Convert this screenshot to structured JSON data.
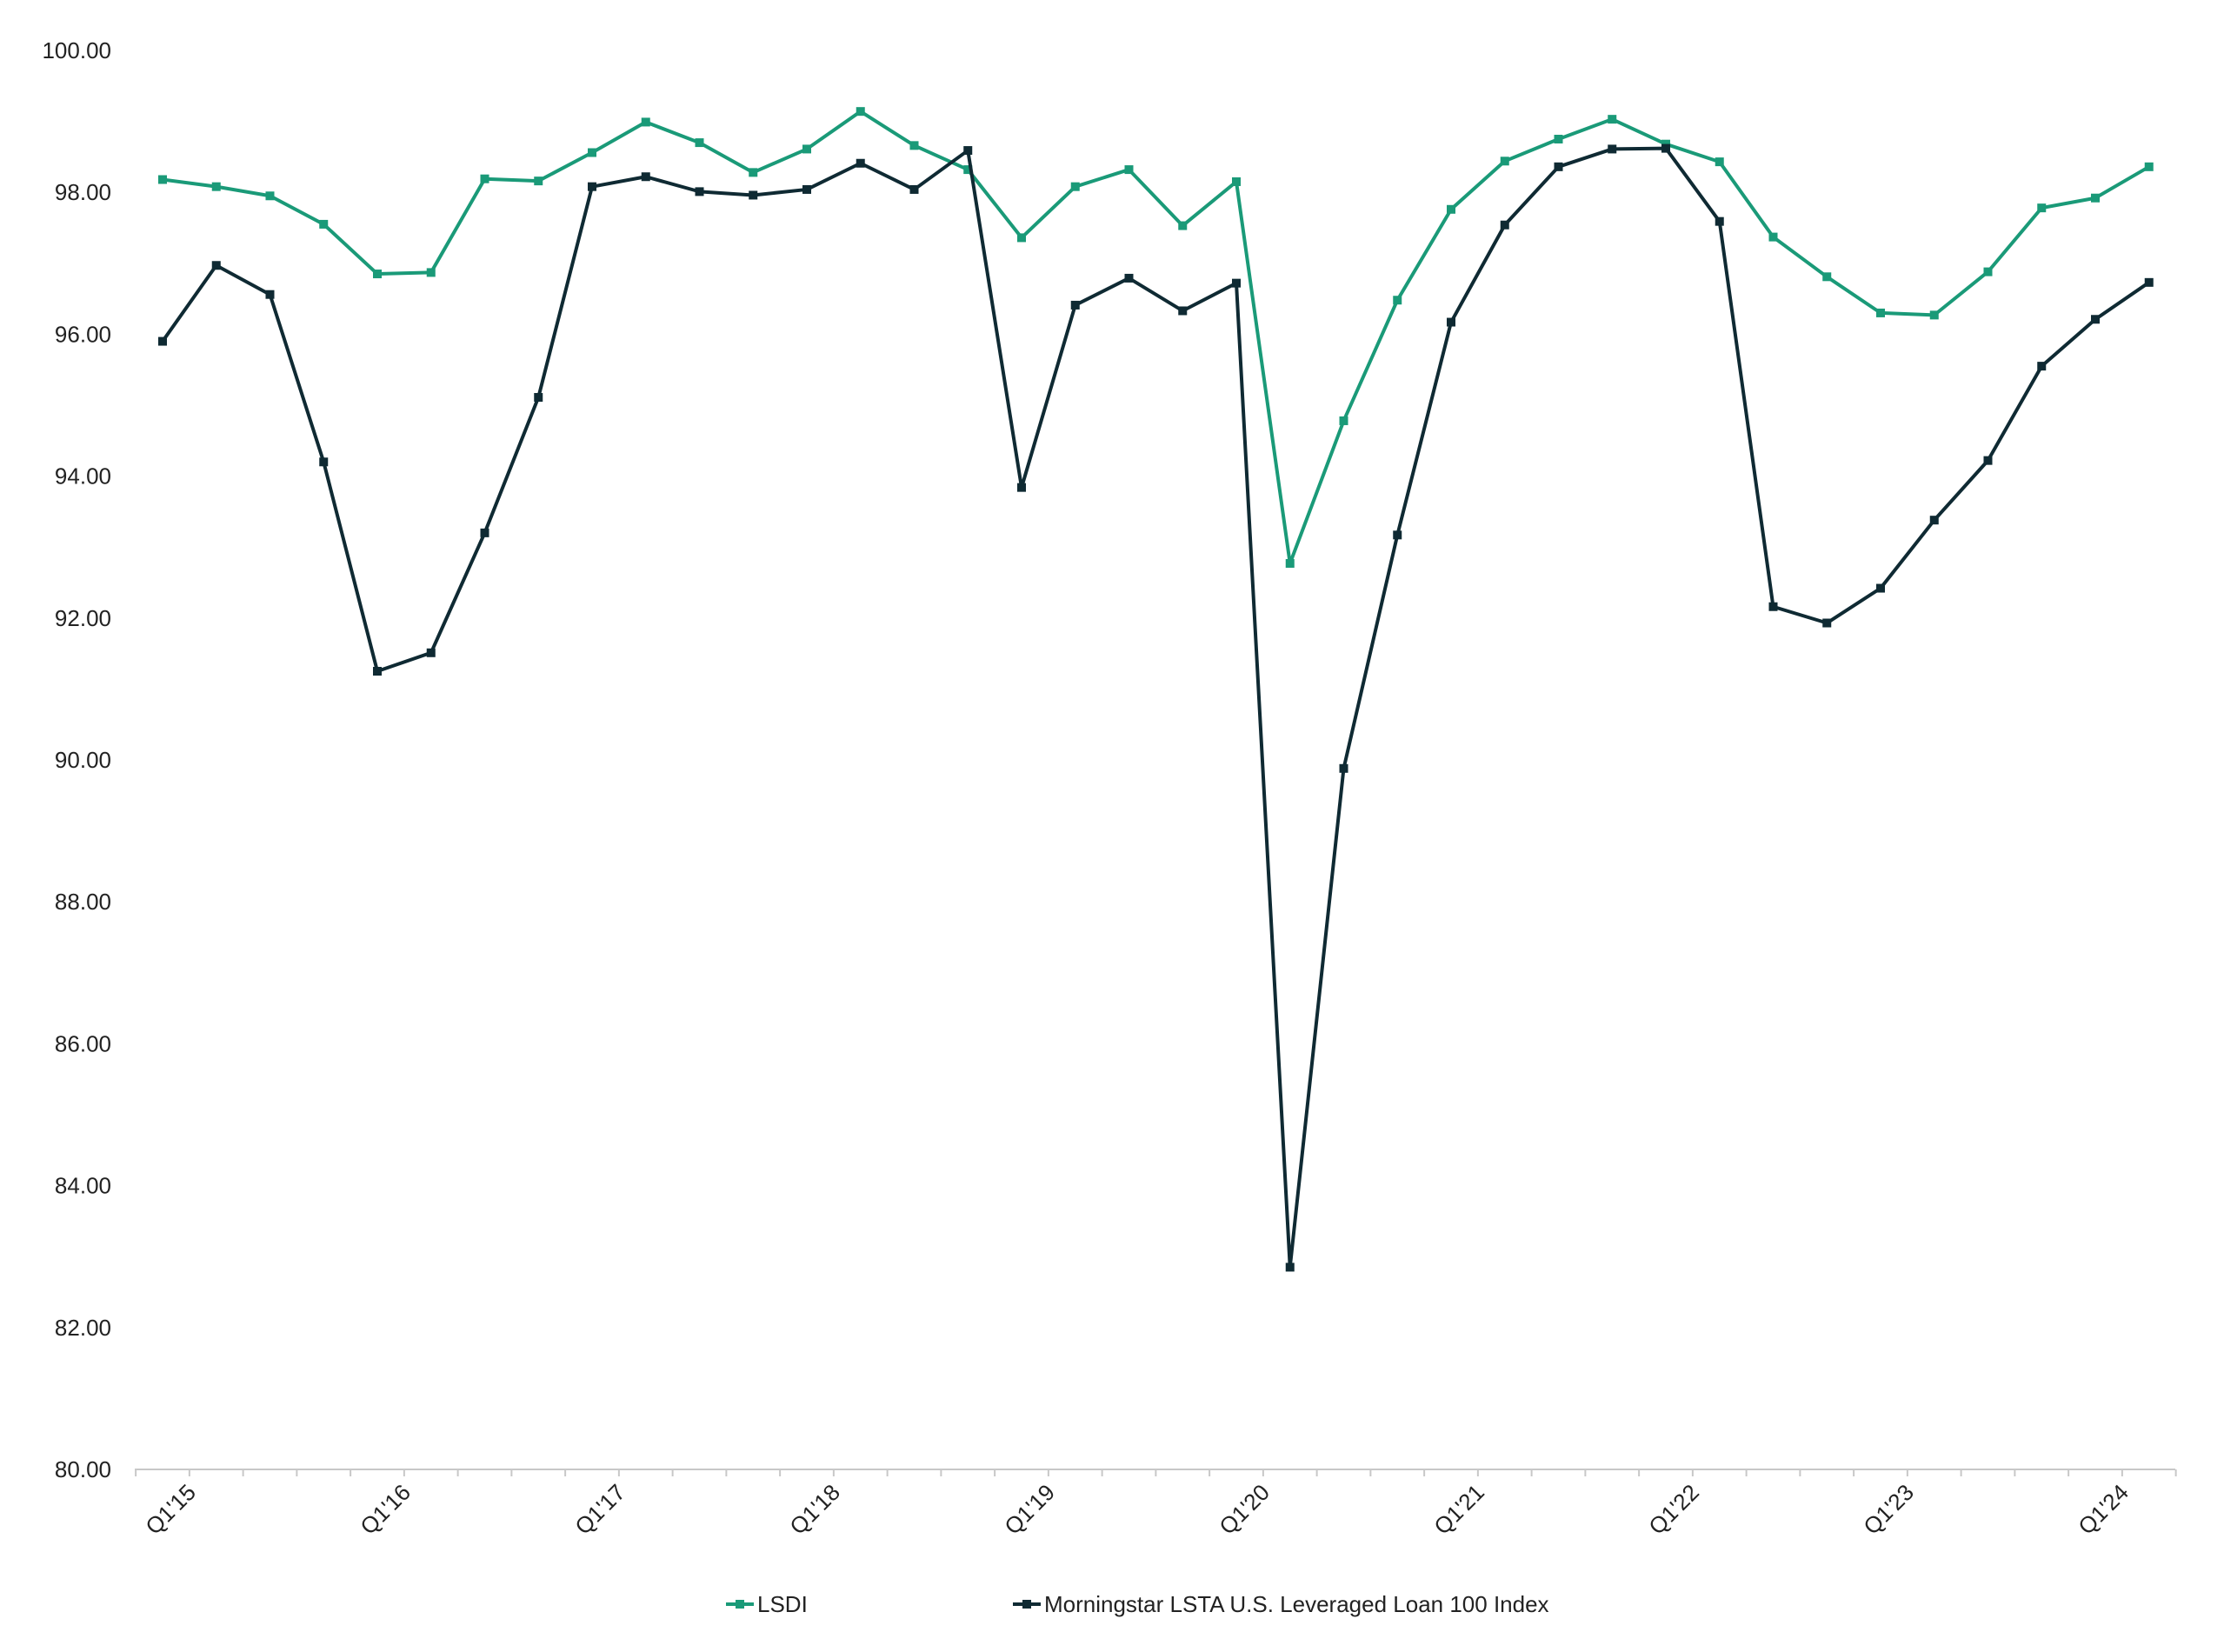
{
  "chart_data": {
    "type": "line",
    "title": "",
    "xlabel": "",
    "ylabel": "",
    "ylim": [
      80,
      100
    ],
    "yticks": [
      80,
      82,
      84,
      86,
      88,
      90,
      92,
      94,
      96,
      98,
      100
    ],
    "ytick_labels": [
      "80.00",
      "82.00",
      "84.00",
      "86.00",
      "88.00",
      "90.00",
      "92.00",
      "94.00",
      "96.00",
      "98.00",
      "100.00"
    ],
    "xtick_labels": [
      {
        "label": "Q1'15",
        "index": 1
      },
      {
        "label": "Q1'16",
        "index": 5
      },
      {
        "label": "Q1'17",
        "index": 9
      },
      {
        "label": "Q1'18",
        "index": 13
      },
      {
        "label": "Q1'19",
        "index": 17
      },
      {
        "label": "Q1'20",
        "index": 21
      },
      {
        "label": "Q1'21",
        "index": 25
      },
      {
        "label": "Q1'22",
        "index": 29
      },
      {
        "label": "Q1'23",
        "index": 33
      },
      {
        "label": "Q1'24",
        "index": 37
      }
    ],
    "grid": false,
    "legend_position": "bottom",
    "series": [
      {
        "name": "LSDI",
        "color": "#1a9a78",
        "marker": "square",
        "values": [
          98.18,
          98.08,
          97.95,
          97.55,
          96.85,
          96.87,
          98.19,
          98.16,
          98.56,
          98.99,
          98.7,
          98.28,
          98.61,
          99.14,
          98.66,
          98.32,
          97.36,
          98.08,
          98.32,
          97.53,
          98.15,
          92.77,
          94.78,
          96.48,
          97.76,
          98.44,
          98.75,
          99.03,
          98.68,
          98.43,
          97.37,
          96.81,
          96.3,
          96.27,
          96.88,
          97.78,
          97.92,
          98.36
        ]
      },
      {
        "name": "Morningstar LSTA U.S. Leveraged Loan 100 Index",
        "color": "#0f2a33",
        "marker": "square",
        "values": [
          95.9,
          96.97,
          96.56,
          94.2,
          91.25,
          91.51,
          93.2,
          95.11,
          98.08,
          98.22,
          98.01,
          97.96,
          98.04,
          98.41,
          98.04,
          98.59,
          93.84,
          96.41,
          96.79,
          96.33,
          96.72,
          82.85,
          89.88,
          93.17,
          96.17,
          97.54,
          98.36,
          98.61,
          98.62,
          97.59,
          92.16,
          91.93,
          92.42,
          93.38,
          94.22,
          95.55,
          96.21,
          96.73
        ]
      }
    ]
  },
  "legend": {
    "items": [
      {
        "label": "LSDI",
        "color": "#1a9a78"
      },
      {
        "label": "Morningstar LSTA U.S. Leveraged Loan 100 Index",
        "color": "#0f2a33"
      }
    ]
  }
}
